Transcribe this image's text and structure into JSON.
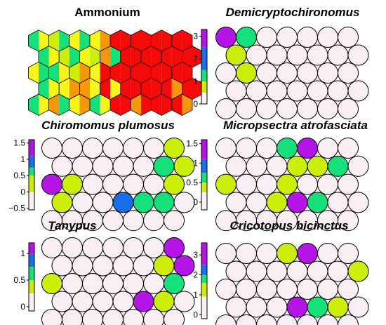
{
  "colors": {
    "empty": "#f8eef3",
    "lime": "#ccee0a",
    "green": "#15e07a",
    "blue": "#1a6de8",
    "purple": "#b414e6",
    "red": "#f50a0a",
    "orange": "#f6960a",
    "yellow": "#f6f61a"
  },
  "chart_data": [
    {
      "id": "ammonium",
      "type": "heatmap",
      "style": "hexagonal self-organizing map, 8 x 5 units, each hexagon split into two colored halves",
      "title": "Ammonium",
      "title_italic": false,
      "grid": {
        "cols": 8,
        "rows": 5
      },
      "cells": [
        [
          [
            "green",
            "yellow"
          ],
          [
            "lime",
            "green"
          ],
          [
            "yellow",
            "green"
          ],
          [
            "yellow",
            "orange"
          ],
          [
            "red",
            "red"
          ],
          [
            "red",
            "red"
          ],
          [
            "red",
            "red"
          ],
          [
            "red",
            "red"
          ]
        ],
        [
          [
            "green",
            "yellow"
          ],
          [
            "lime",
            "green"
          ],
          [
            "yellow",
            "lime"
          ],
          [
            "orange",
            "green"
          ],
          [
            "red",
            "red"
          ],
          [
            "red",
            "red"
          ],
          [
            "red",
            "red"
          ],
          [
            "red",
            "red"
          ]
        ],
        [
          [
            "yellow",
            "green"
          ],
          [
            "green",
            "yellow"
          ],
          [
            "lime",
            "orange"
          ],
          [
            "yellow",
            "red"
          ],
          [
            "red",
            "red"
          ],
          [
            "red",
            "red"
          ],
          [
            "red",
            "red"
          ],
          [
            "red",
            "red"
          ]
        ],
        [
          [
            "green",
            "yellow"
          ],
          [
            "yellow",
            "orange"
          ],
          [
            "orange",
            "yellow"
          ],
          [
            "red",
            "yellow"
          ],
          [
            "red",
            "red"
          ],
          [
            "red",
            "red"
          ],
          [
            "red",
            "orange"
          ],
          [
            "red",
            "red"
          ]
        ],
        [
          [
            "green",
            "yellow"
          ],
          [
            "orange",
            "green"
          ],
          [
            "yellow",
            "orange"
          ],
          [
            "green",
            "yellow"
          ],
          [
            "red",
            "red"
          ],
          [
            "orange",
            "red"
          ],
          [
            "red",
            "red"
          ],
          [
            "red",
            "orange"
          ]
        ]
      ]
    },
    {
      "id": "demicryptochironomus",
      "type": "heatmap",
      "style": "circle self-organizing map, 7 x 5",
      "title": "Demicryptochironomus",
      "title_italic": true,
      "grid": {
        "cols": 7,
        "rows": 5
      },
      "colorbar": {
        "colors": [
          "empty",
          "lime",
          "green",
          "blue",
          "purple"
        ],
        "bounds": [
          0,
          0.5,
          1,
          1.5,
          2.5,
          3.3
        ],
        "ticks": [
          0,
          1,
          2,
          3
        ],
        "tick_labels": [
          "0",
          "1",
          "2",
          "3"
        ]
      },
      "cells": [
        [
          "purple",
          "green",
          "empty",
          "empty",
          "empty",
          "empty",
          "empty"
        ],
        [
          "lime",
          "empty",
          "empty",
          "empty",
          "empty",
          "empty",
          "empty"
        ],
        [
          "empty",
          "lime",
          "empty",
          "empty",
          "empty",
          "empty",
          "empty"
        ],
        [
          "empty",
          "empty",
          "empty",
          "empty",
          "empty",
          "empty",
          "empty"
        ],
        [
          "empty",
          "empty",
          "empty",
          "empty",
          "empty",
          "empty",
          "empty"
        ]
      ]
    },
    {
      "id": "chironomus-plumosus",
      "type": "heatmap",
      "style": "circle self-organizing map, 7 x 5",
      "title": "Chiromomus plumosus",
      "title_italic": true,
      "grid": {
        "cols": 7,
        "rows": 5
      },
      "colorbar": {
        "colors": [
          "empty",
          "lime",
          "green",
          "blue",
          "purple"
        ],
        "bounds": [
          -0.55,
          0,
          0.5,
          0.75,
          1.1,
          1.6
        ],
        "ticks": [
          -0.5,
          0,
          0.5,
          1,
          1.5
        ],
        "tick_labels": [
          "−0.5",
          "0",
          "0.5",
          "1",
          "1.5"
        ]
      },
      "cells": [
        [
          "empty",
          "empty",
          "empty",
          "empty",
          "empty",
          "empty",
          "lime"
        ],
        [
          "empty",
          "empty",
          "empty",
          "empty",
          "empty",
          "green",
          "lime"
        ],
        [
          "purple",
          "lime",
          "empty",
          "empty",
          "empty",
          "empty",
          "lime"
        ],
        [
          "lime",
          "empty",
          "empty",
          "blue",
          "green",
          "green",
          "empty"
        ],
        [
          "empty",
          "empty",
          "empty",
          "empty",
          "empty",
          "empty",
          "empty"
        ]
      ]
    },
    {
      "id": "micropsectra-atrofasciata",
      "type": "heatmap",
      "style": "circle self-organizing map, 7 x 5",
      "title": "Micropsectra atrofasciata",
      "title_italic": true,
      "grid": {
        "cols": 7,
        "rows": 5
      },
      "colorbar": {
        "colors": [
          "empty",
          "lime",
          "green",
          "blue",
          "purple"
        ],
        "bounds": [
          -0.2,
          0.25,
          0.5,
          0.75,
          1.1,
          1.6
        ],
        "ticks": [
          0,
          0.5,
          1,
          1.5
        ],
        "tick_labels": [
          "0",
          "0.5",
          "1",
          "1.5"
        ]
      },
      "cells": [
        [
          "empty",
          "empty",
          "empty",
          "green",
          "purple",
          "empty",
          "empty"
        ],
        [
          "empty",
          "empty",
          "empty",
          "lime",
          "lime",
          "green",
          "empty"
        ],
        [
          "lime",
          "empty",
          "empty",
          "lime",
          "empty",
          "empty",
          "empty"
        ],
        [
          "empty",
          "empty",
          "lime",
          "purple",
          "green",
          "empty",
          "empty"
        ],
        [
          "empty",
          "empty",
          "empty",
          "empty",
          "empty",
          "empty",
          "empty"
        ]
      ]
    },
    {
      "id": "tanypus",
      "type": "heatmap",
      "style": "circle self-organizing map, 7 x 5",
      "title": "Tanypus",
      "title_italic": true,
      "grid": {
        "cols": 7,
        "rows": 5
      },
      "colorbar": {
        "colors": [
          "empty",
          "lime",
          "green",
          "blue",
          "purple"
        ],
        "bounds": [
          -0.08,
          0.25,
          0.5,
          0.75,
          1.0,
          1.2
        ],
        "ticks": [
          0,
          0.5,
          1
        ],
        "tick_labels": [
          "0",
          "0.5",
          "1"
        ]
      },
      "cells": [
        [
          "empty",
          "empty",
          "empty",
          "empty",
          "empty",
          "empty",
          "purple"
        ],
        [
          "empty",
          "empty",
          "empty",
          "empty",
          "empty",
          "lime",
          "purple"
        ],
        [
          "lime",
          "empty",
          "empty",
          "empty",
          "empty",
          "empty",
          "green"
        ],
        [
          "empty",
          "empty",
          "empty",
          "empty",
          "purple",
          "lime",
          "empty"
        ],
        [
          "empty",
          "empty",
          "empty",
          "empty",
          "empty",
          "empty",
          "empty"
        ]
      ]
    },
    {
      "id": "cricotopus-bicinctus",
      "type": "heatmap",
      "style": "circle self-organizing map, 7 x 5",
      "title": "Cricotopus bicinctus",
      "title_italic": true,
      "grid": {
        "cols": 7,
        "rows": 5
      },
      "colorbar": {
        "colors": [
          "empty",
          "lime",
          "green",
          "blue",
          "purple"
        ],
        "bounds": [
          -0.2,
          0.9,
          1.6,
          2.0,
          2.5,
          3.6
        ],
        "ticks": [
          0,
          1,
          2,
          3
        ],
        "tick_labels": [
          "0",
          "1",
          "2",
          "3"
        ]
      },
      "cells": [
        [
          "empty",
          "empty",
          "empty",
          "lime",
          "purple",
          "empty",
          "empty"
        ],
        [
          "empty",
          "empty",
          "empty",
          "empty",
          "empty",
          "empty",
          "lime"
        ],
        [
          "empty",
          "empty",
          "empty",
          "empty",
          "empty",
          "empty",
          "empty"
        ],
        [
          "empty",
          "empty",
          "empty",
          "purple",
          "green",
          "lime",
          "empty"
        ],
        [
          "empty",
          "empty",
          "empty",
          "empty",
          "empty",
          "empty",
          "empty"
        ]
      ]
    }
  ]
}
